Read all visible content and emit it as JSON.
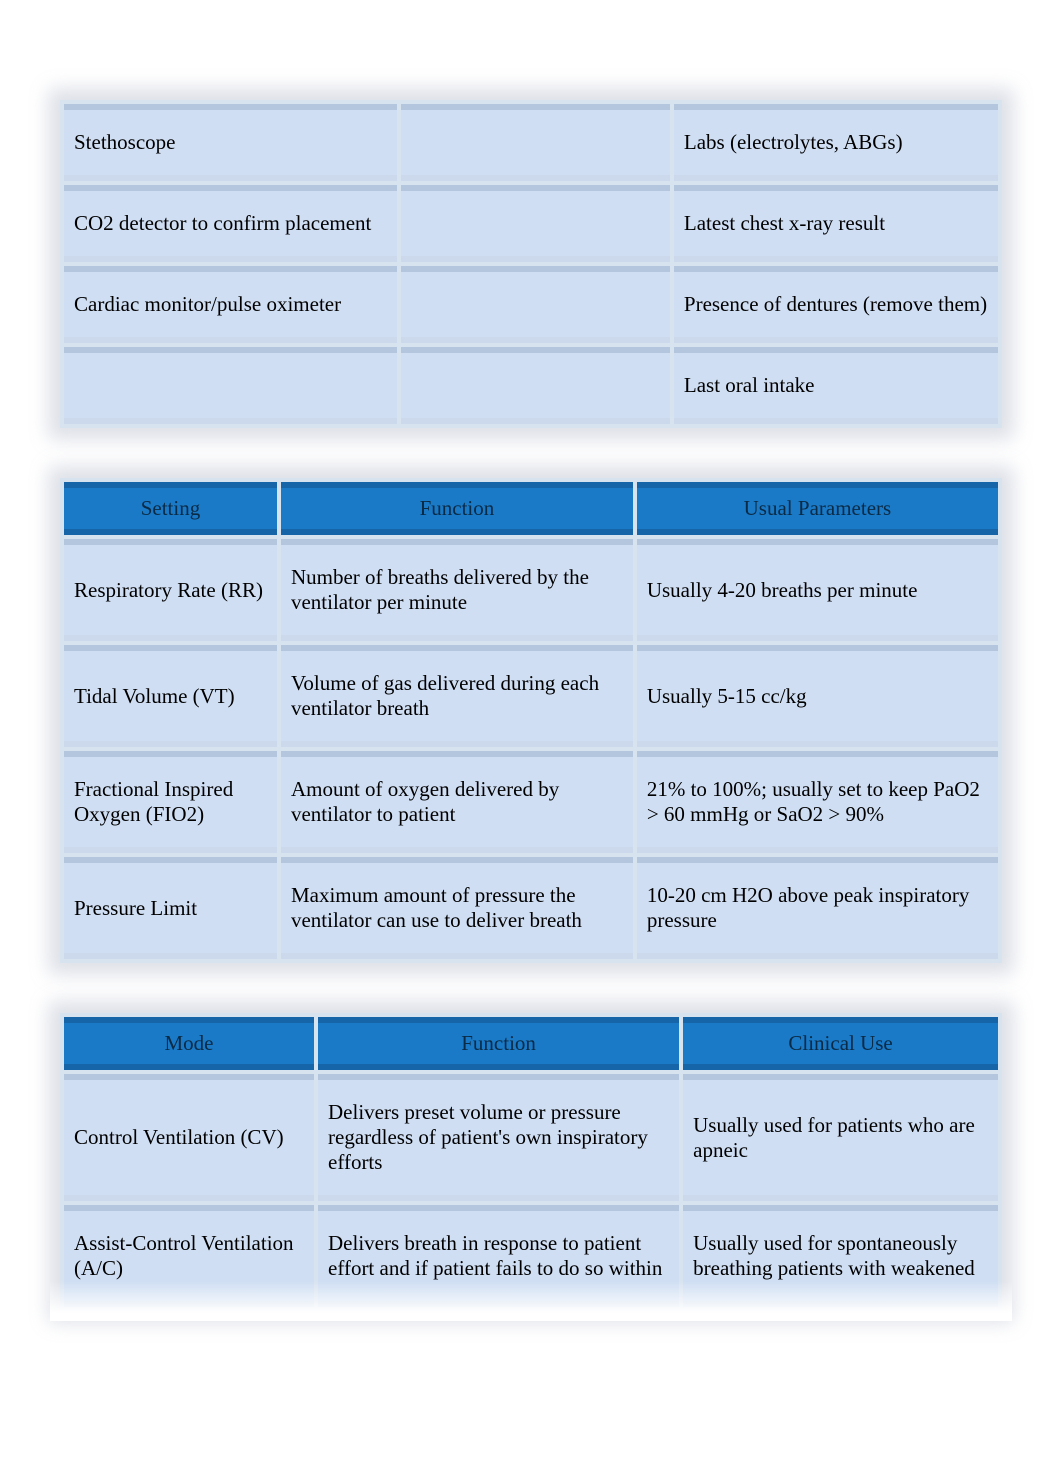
{
  "colors": {
    "page_bg": "#ffffff",
    "cell_bg": "#cfdef3",
    "table_gap_bg": "#d8e3f0",
    "header_bg": "#1a7ac7",
    "header_text": "#0a2a45",
    "text": "#000000",
    "shadow": "rgba(160,170,190,0.35)"
  },
  "typography": {
    "font_family": "Times New Roman",
    "base_fontsize_pt": 16
  },
  "equipment_table": {
    "type": "table",
    "columns": 3,
    "col_widths_pct": [
      36,
      29,
      35
    ],
    "rows": [
      {
        "c1": "Stethoscope",
        "c2": "",
        "c3": "Labs (electrolytes, ABGs)"
      },
      {
        "c1": "CO2 detector to confirm placement",
        "c2": "",
        "c3": "Latest chest x-ray result"
      },
      {
        "c1": "Cardiac monitor/pulse oximeter",
        "c2": "",
        "c3": "Presence of dentures (remove them)"
      },
      {
        "c1": "",
        "c2": "",
        "c3": "Last oral intake"
      }
    ]
  },
  "settings_table": {
    "type": "table",
    "headers": {
      "c1": "Setting",
      "c2": "Function",
      "c3": "Usual Parameters"
    },
    "col_widths_pct": [
      23,
      38,
      39
    ],
    "rows": [
      {
        "c1": "Respiratory Rate (RR)",
        "c2": "Number of breaths delivered by the ventilator per minute",
        "c3": "Usually 4-20 breaths per minute"
      },
      {
        "c1": "Tidal Volume (VT)",
        "c2": "Volume of gas delivered during each ventilator breath",
        "c3": "Usually 5-15 cc/kg"
      },
      {
        "c1": "Fractional Inspired Oxygen (FIO2)",
        "c2": "Amount of oxygen delivered by ventilator to patient",
        "c3": "21% to 100%; usually set to keep PaO2 > 60 mmHg or SaO2 > 90%"
      },
      {
        "c1": "Pressure Limit",
        "c2": "Maximum amount of pressure the ventilator can use to deliver breath",
        "c3": "10-20 cm H2O above peak inspiratory pressure"
      }
    ]
  },
  "modes_table": {
    "type": "table",
    "headers": {
      "c1": "Mode",
      "c2": "Function",
      "c3": "Clinical Use"
    },
    "col_widths_pct": [
      27,
      39,
      34
    ],
    "rows": [
      {
        "c1": "Control Ventilation (CV)",
        "c2": "Delivers preset volume or pressure regardless of patient's own inspiratory efforts",
        "c3": "Usually used for patients who are apneic"
      },
      {
        "c1": "Assist-Control Ventilation (A/C)",
        "c2": "Delivers breath in response to patient effort and if patient fails to do so within",
        "c3": "Usually used for spontaneously breathing patients with weakened"
      }
    ]
  }
}
